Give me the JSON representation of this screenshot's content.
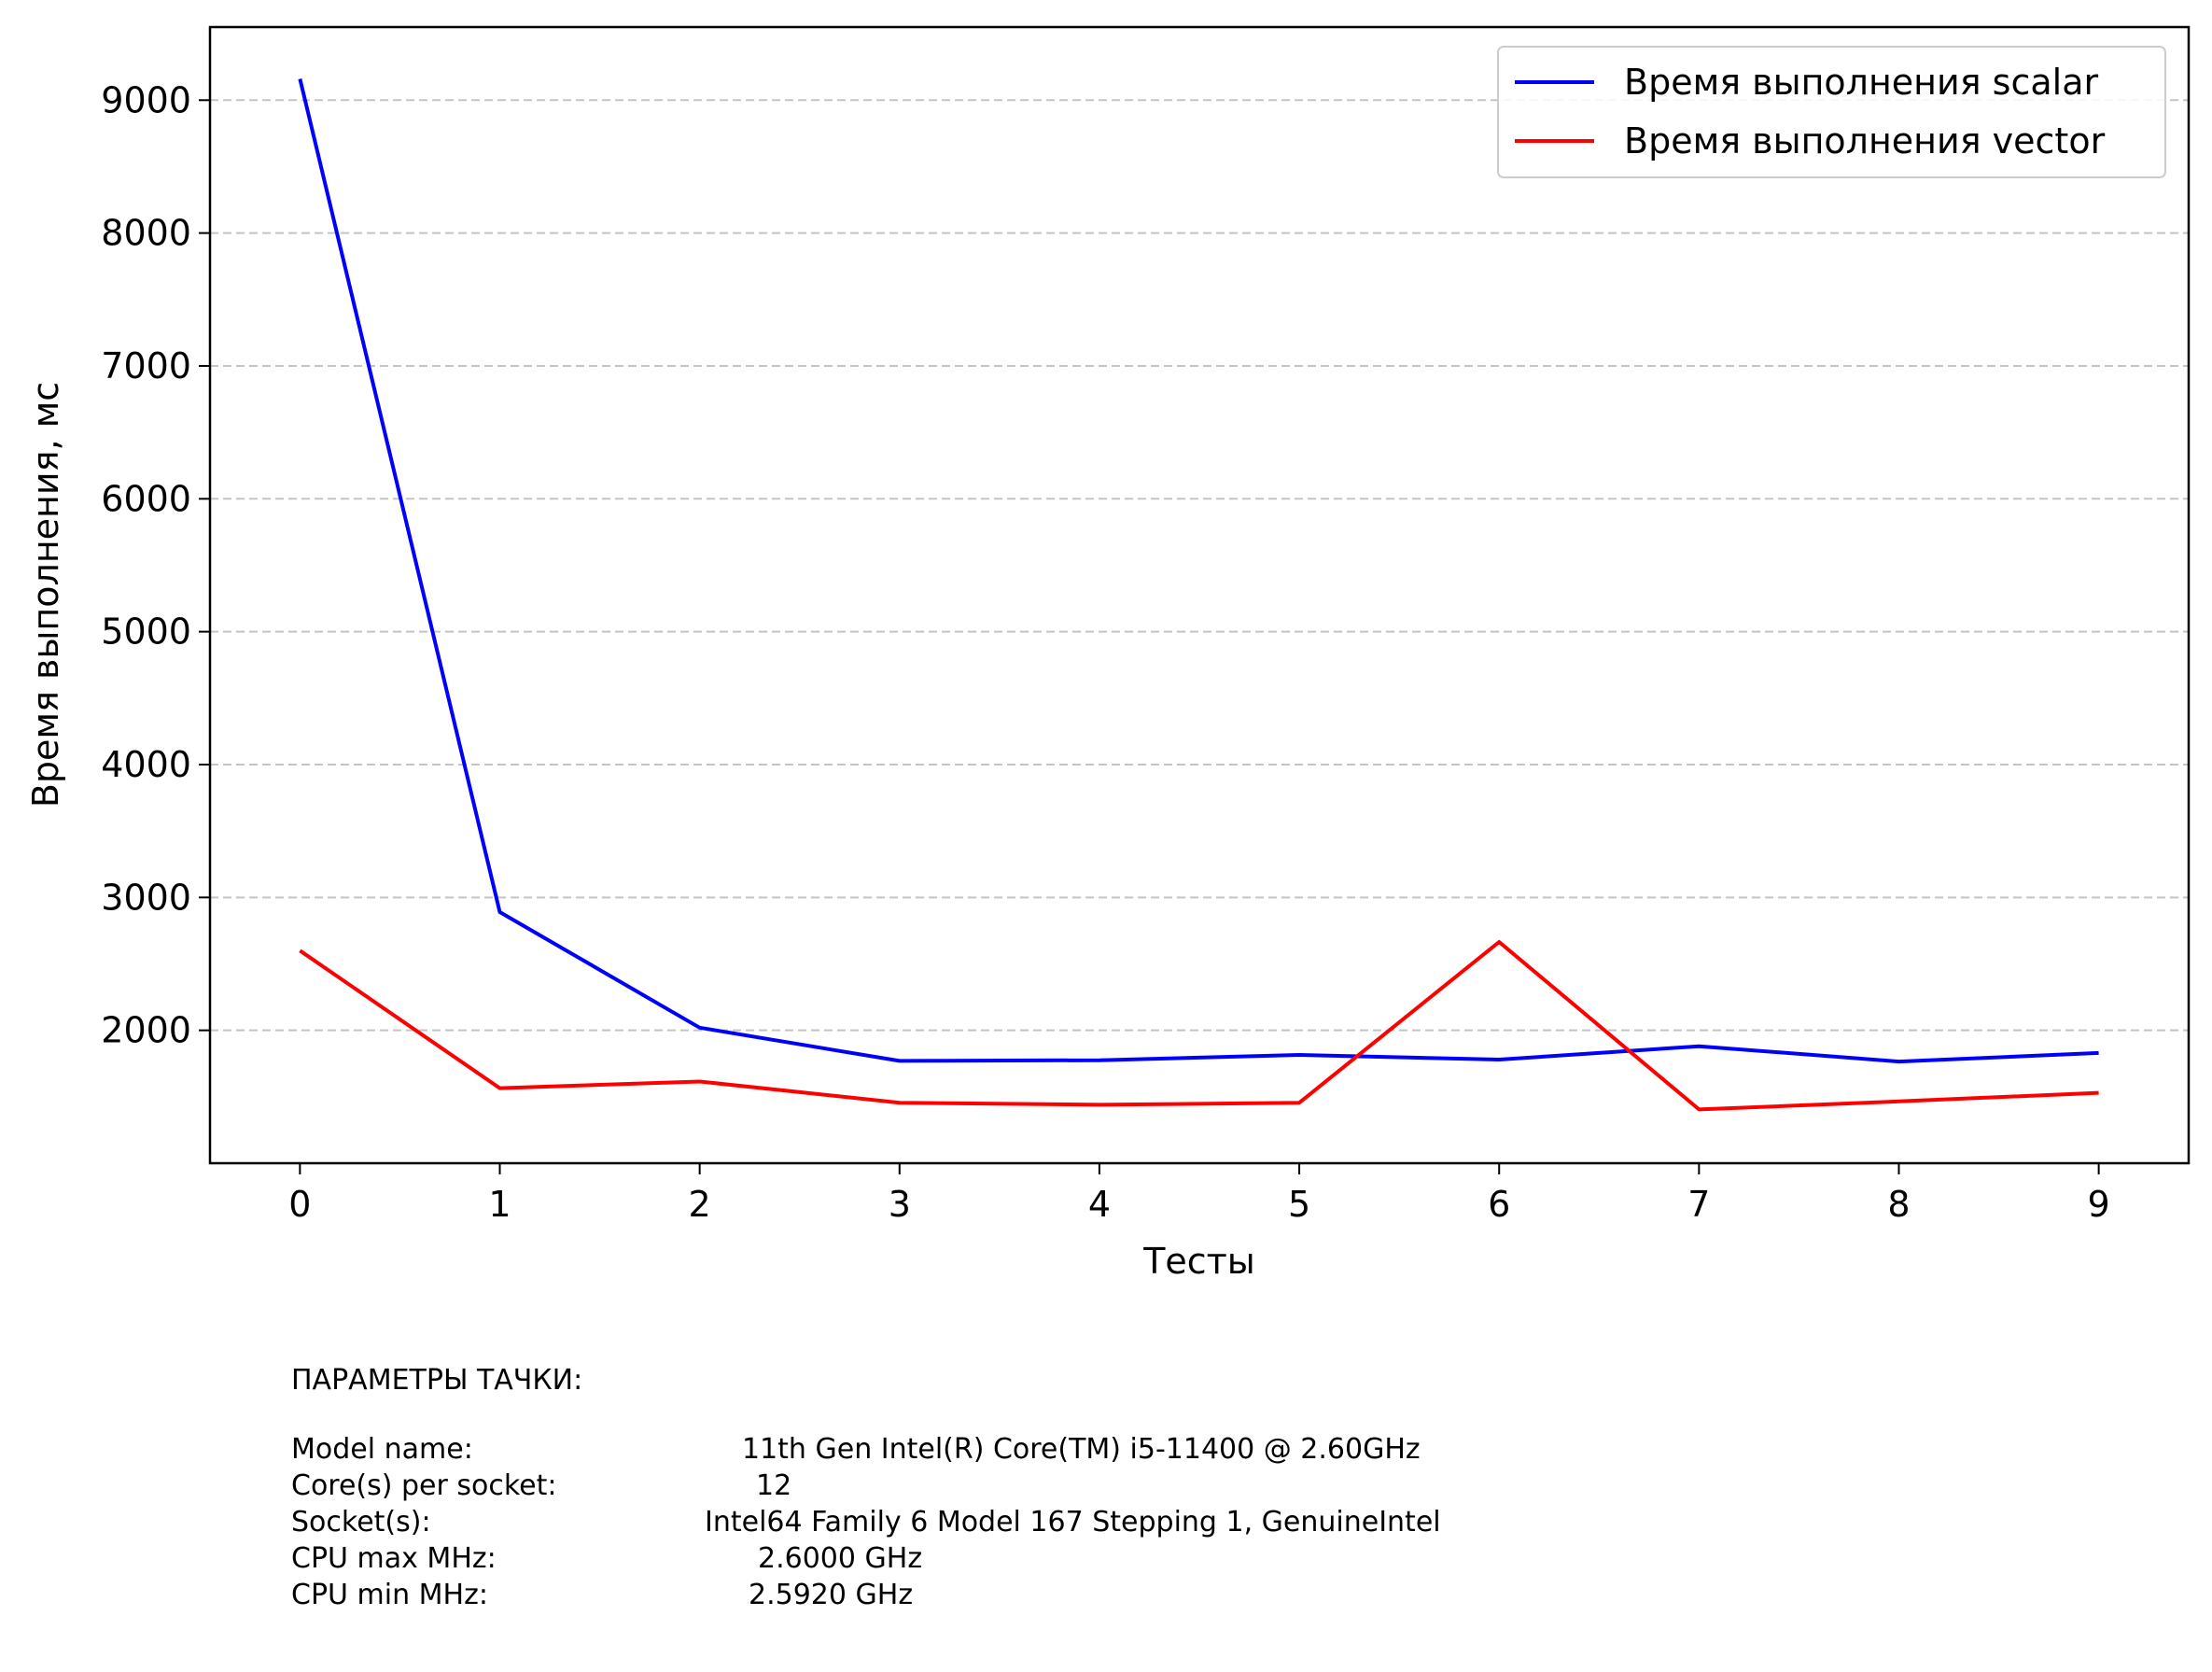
{
  "chart_data": {
    "type": "line",
    "title": "",
    "xlabel": "Тесты",
    "ylabel": "Время выполнения, мс",
    "x": [
      0,
      1,
      2,
      3,
      4,
      5,
      6,
      7,
      8,
      9
    ],
    "x_ticks": [
      "0",
      "1",
      "2",
      "3",
      "4",
      "5",
      "6",
      "7",
      "8",
      "9"
    ],
    "y_ticks": [
      "2000",
      "3000",
      "4000",
      "5000",
      "6000",
      "7000",
      "8000",
      "9000"
    ],
    "xlim": [
      -0.45,
      9.45
    ],
    "ylim": [
      1000,
      9550
    ],
    "grid": "y dashed",
    "legend_position": "top-right",
    "series": [
      {
        "name": "Время выполнения scalar",
        "color": "#0000ff",
        "values": [
          9160,
          2890,
          2020,
          1770,
          1775,
          1815,
          1780,
          1880,
          1765,
          1830
        ]
      },
      {
        "name": "Время выполнения vector",
        "color": "#ff0000",
        "values": [
          2600,
          1565,
          1615,
          1455,
          1440,
          1455,
          2665,
          1405,
          1465,
          1530
        ]
      }
    ]
  },
  "machine_info": {
    "heading": "ПАРАМЕТРЫ ТАЧКИ:",
    "rows": [
      {
        "key": "Model name:",
        "value": "11th Gen Intel(R) Core(TM) i5-11400 @ 2.60GHz"
      },
      {
        "key": "Core(s) per socket:",
        "value": "12"
      },
      {
        "key": "Socket(s):",
        "value": "Intel64 Family 6 Model 167 Stepping 1, GenuineIntel"
      },
      {
        "key": "CPU max MHz:",
        "value": "2.6000 GHz"
      },
      {
        "key": "CPU min MHz:",
        "value": "2.5920 GHz"
      }
    ]
  }
}
